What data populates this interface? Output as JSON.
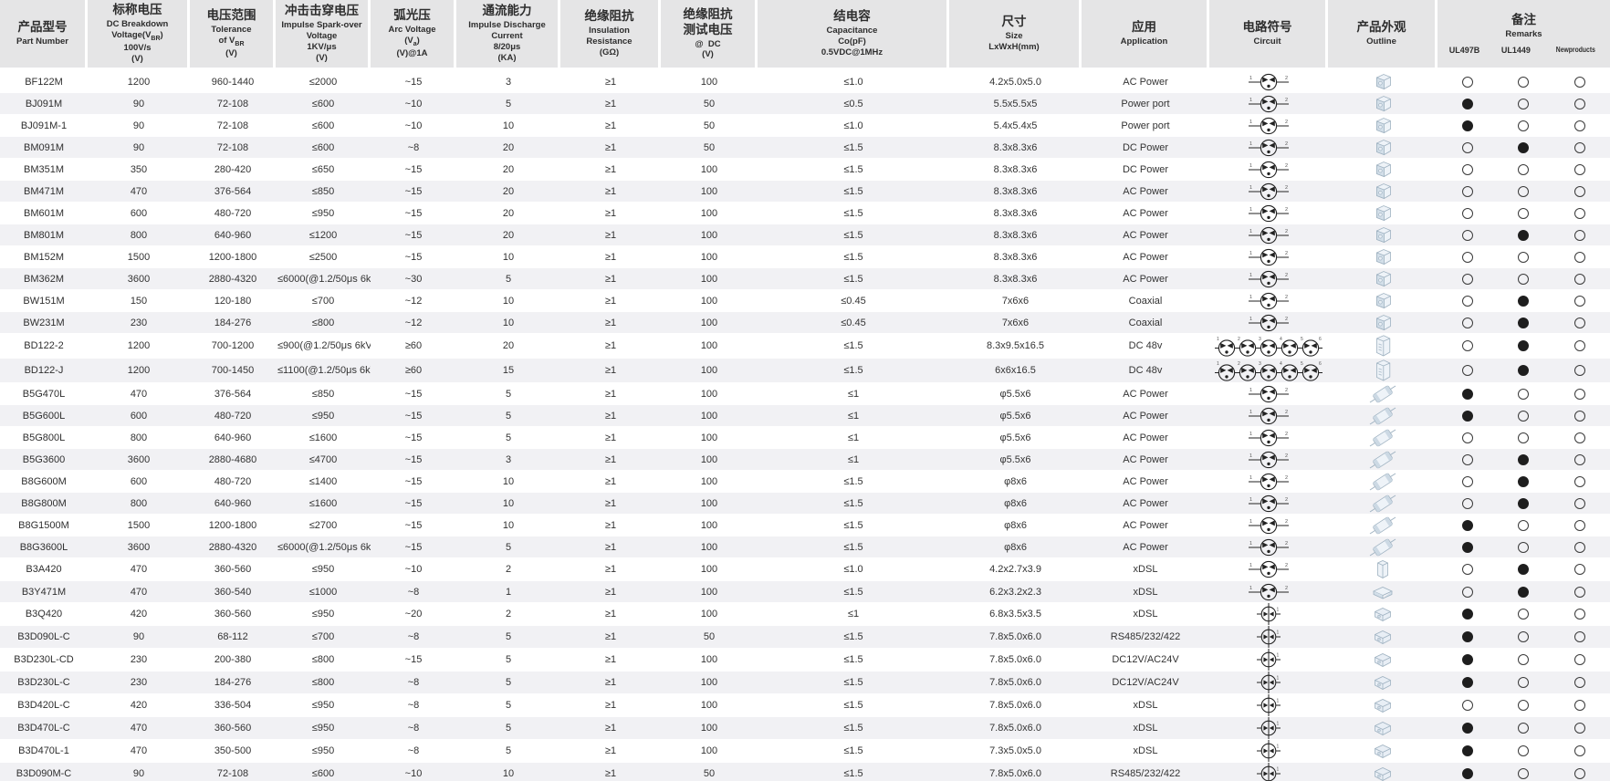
{
  "table": {
    "headers": {
      "part": {
        "cn": "产品型号",
        "en": "Part Number"
      },
      "vbr": {
        "cn": "标称电压",
        "en": "DC Breakdown<br>Voltage(V<sub>BR</sub>)<br>100V/s<br>(V)"
      },
      "tolerance": {
        "cn": "电压范围",
        "en": "Tolerance<br>of V<sub>BR</sub><br>(V)"
      },
      "impulse": {
        "cn": "冲击击穿电压",
        "en": "Impulse Spark-over<br>Voltage<br>1KV/μs<br>(V)"
      },
      "arc": {
        "cn": "弧光压",
        "en": "Arc Voltage<br>(V<sub>a</sub>)<br>(V)@1A"
      },
      "discharge": {
        "cn": "通流能力",
        "en": "Impulse Discharge<br>Current<br>8/20μs<br>(KA)"
      },
      "insulation": {
        "cn": "绝缘阻抗",
        "en": "Insulation<br>Resistance<br>(GΩ)"
      },
      "testv": {
        "cn": "绝缘阻抗<br>测试电压",
        "en": "@&nbsp;&nbsp;DC<br>(V)"
      },
      "capacitance": {
        "cn": "结电容",
        "en": "Capacitance<br>Co(pF)<br>0.5VDC@1MHz"
      },
      "size": {
        "cn": "尺寸",
        "en": "Size<br>LxWxH(mm)"
      },
      "application": {
        "cn": "应用",
        "en": "Application"
      },
      "circuit": {
        "cn": "电路符号",
        "en": "Circuit"
      },
      "outline": {
        "cn": "产品外观",
        "en": "Outline"
      },
      "remarks": {
        "cn": "备注",
        "en": "Remarks",
        "subs": [
          "UL497B",
          "UL1449",
          "Newproducts"
        ]
      }
    },
    "icon_legend": {
      "gdt3": "three-electrode-gdt-circuit-symbol",
      "gdt5": "five-element-gdt-array-circuit-symbol",
      "gdt2": "two-electrode-gdt-circuit-symbol",
      "cube": "smd-cube-outline",
      "module": "module-outline",
      "axial": "axial-leaded-outline",
      "boxv": "vertical-box-outline",
      "boxf": "flat-box-outline",
      "chip": "smd-chip-outline"
    },
    "columns": [
      "part",
      "vbr",
      "tol",
      "imp",
      "arc",
      "ka",
      "ir",
      "tv",
      "cap",
      "size",
      "app"
    ],
    "rows": [
      {
        "part": "BF122M",
        "vbr": "1200",
        "tol": "960-1440",
        "imp": "≤2000",
        "arc": "~15",
        "ka": "3",
        "ir": "≥1",
        "tv": "100",
        "cap": "≤1.0",
        "size": "4.2x5.0x5.0",
        "app": "AC Power",
        "circuit": "gdt3",
        "outline": "cube",
        "ul497b": 0,
        "ul1449": 0,
        "newp": 0
      },
      {
        "part": "BJ091M",
        "vbr": "90",
        "tol": "72-108",
        "imp": "≤600",
        "arc": "~10",
        "ka": "5",
        "ir": "≥1",
        "tv": "50",
        "cap": "≤0.5",
        "size": "5.5x5.5x5",
        "app": "Power port",
        "circuit": "gdt3",
        "outline": "cube",
        "ul497b": 1,
        "ul1449": 0,
        "newp": 0
      },
      {
        "part": "BJ091M-1",
        "vbr": "90",
        "tol": "72-108",
        "imp": "≤600",
        "arc": "~10",
        "ka": "10",
        "ir": "≥1",
        "tv": "50",
        "cap": "≤1.0",
        "size": "5.4x5.4x5",
        "app": "Power port",
        "circuit": "gdt3",
        "outline": "cube",
        "ul497b": 1,
        "ul1449": 0,
        "newp": 0
      },
      {
        "part": "BM091M",
        "vbr": "90",
        "tol": "72-108",
        "imp": "≤600",
        "arc": "~8",
        "ka": "20",
        "ir": "≥1",
        "tv": "50",
        "cap": "≤1.5",
        "size": "8.3x8.3x6",
        "app": "DC Power",
        "circuit": "gdt3",
        "outline": "cube",
        "ul497b": 0,
        "ul1449": 1,
        "newp": 0
      },
      {
        "part": "BM351M",
        "vbr": "350",
        "tol": "280-420",
        "imp": "≤650",
        "arc": "~15",
        "ka": "20",
        "ir": "≥1",
        "tv": "100",
        "cap": "≤1.5",
        "size": "8.3x8.3x6",
        "app": "DC Power",
        "circuit": "gdt3",
        "outline": "cube",
        "ul497b": 0,
        "ul1449": 0,
        "newp": 0
      },
      {
        "part": "BM471M",
        "vbr": "470",
        "tol": "376-564",
        "imp": "≤850",
        "arc": "~15",
        "ka": "20",
        "ir": "≥1",
        "tv": "100",
        "cap": "≤1.5",
        "size": "8.3x8.3x6",
        "app": "AC Power",
        "circuit": "gdt3",
        "outline": "cube",
        "ul497b": 0,
        "ul1449": 0,
        "newp": 0
      },
      {
        "part": "BM601M",
        "vbr": "600",
        "tol": "480-720",
        "imp": "≤950",
        "arc": "~15",
        "ka": "20",
        "ir": "≥1",
        "tv": "100",
        "cap": "≤1.5",
        "size": "8.3x8.3x6",
        "app": "AC Power",
        "circuit": "gdt3",
        "outline": "cube",
        "ul497b": 0,
        "ul1449": 0,
        "newp": 0
      },
      {
        "part": "BM801M",
        "vbr": "800",
        "tol": "640-960",
        "imp": "≤1200",
        "arc": "~15",
        "ka": "20",
        "ir": "≥1",
        "tv": "100",
        "cap": "≤1.5",
        "size": "8.3x8.3x6",
        "app": "AC Power",
        "circuit": "gdt3",
        "outline": "cube",
        "ul497b": 0,
        "ul1449": 1,
        "newp": 0
      },
      {
        "part": "BM152M",
        "vbr": "1500",
        "tol": "1200-1800",
        "imp": "≤2500",
        "arc": "~15",
        "ka": "10",
        "ir": "≥1",
        "tv": "100",
        "cap": "≤1.5",
        "size": "8.3x8.3x6",
        "app": "AC Power",
        "circuit": "gdt3",
        "outline": "cube",
        "ul497b": 0,
        "ul1449": 0,
        "newp": 0
      },
      {
        "part": "BM362M",
        "vbr": "3600",
        "tol": "2880-4320",
        "imp": "≤6000(@1.2/50μs 6kV)",
        "arc": "~30",
        "ka": "5",
        "ir": "≥1",
        "tv": "100",
        "cap": "≤1.5",
        "size": "8.3x8.3x6",
        "app": "AC Power",
        "circuit": "gdt3",
        "outline": "cube",
        "ul497b": 0,
        "ul1449": 0,
        "newp": 0
      },
      {
        "part": "BW151M",
        "vbr": "150",
        "tol": "120-180",
        "imp": "≤700",
        "arc": "~12",
        "ka": "10",
        "ir": "≥1",
        "tv": "100",
        "cap": "≤0.45",
        "size": "7x6x6",
        "app": "Coaxial",
        "circuit": "gdt3",
        "outline": "cube",
        "ul497b": 0,
        "ul1449": 1,
        "newp": 0
      },
      {
        "part": "BW231M",
        "vbr": "230",
        "tol": "184-276",
        "imp": "≤800",
        "arc": "~12",
        "ka": "10",
        "ir": "≥1",
        "tv": "100",
        "cap": "≤0.45",
        "size": "7x6x6",
        "app": "Coaxial",
        "circuit": "gdt3",
        "outline": "cube",
        "ul497b": 0,
        "ul1449": 1,
        "newp": 0
      },
      {
        "part": "BD122-2",
        "vbr": "1200",
        "tol": "700-1200",
        "imp": "≤900(@1.2/50μs 6kV)",
        "arc": "≥60",
        "ka": "20",
        "ir": "≥1",
        "tv": "100",
        "cap": "≤1.5",
        "size": "8.3x9.5x16.5",
        "app": "DC 48v",
        "circuit": "gdt5",
        "outline": "module",
        "ul497b": 0,
        "ul1449": 1,
        "newp": 0
      },
      {
        "part": "BD122-J",
        "vbr": "1200",
        "tol": "700-1450",
        "imp": "≤1100(@1.2/50μs 6kV)",
        "arc": "≥60",
        "ka": "15",
        "ir": "≥1",
        "tv": "100",
        "cap": "≤1.5",
        "size": "6x6x16.5",
        "app": "DC 48v",
        "circuit": "gdt5",
        "outline": "module",
        "ul497b": 0,
        "ul1449": 1,
        "newp": 0
      },
      {
        "part": "B5G470L",
        "vbr": "470",
        "tol": "376-564",
        "imp": "≤850",
        "arc": "~15",
        "ka": "5",
        "ir": "≥1",
        "tv": "100",
        "cap": "≤1",
        "size": "φ5.5x6",
        "app": "AC Power",
        "circuit": "gdt3",
        "outline": "axial",
        "ul497b": 1,
        "ul1449": 0,
        "newp": 0
      },
      {
        "part": "B5G600L",
        "vbr": "600",
        "tol": "480-720",
        "imp": "≤950",
        "arc": "~15",
        "ka": "5",
        "ir": "≥1",
        "tv": "100",
        "cap": "≤1",
        "size": "φ5.5x6",
        "app": "AC Power",
        "circuit": "gdt3",
        "outline": "axial",
        "ul497b": 1,
        "ul1449": 0,
        "newp": 0
      },
      {
        "part": "B5G800L",
        "vbr": "800",
        "tol": "640-960",
        "imp": "≤1600",
        "arc": "~15",
        "ka": "5",
        "ir": "≥1",
        "tv": "100",
        "cap": "≤1",
        "size": "φ5.5x6",
        "app": "AC Power",
        "circuit": "gdt3",
        "outline": "axial",
        "ul497b": 0,
        "ul1449": 0,
        "newp": 0
      },
      {
        "part": "B5G3600",
        "vbr": "3600",
        "tol": "2880-4680",
        "imp": "≤4700",
        "arc": "~15",
        "ka": "3",
        "ir": "≥1",
        "tv": "100",
        "cap": "≤1",
        "size": "φ5.5x6",
        "app": "AC Power",
        "circuit": "gdt3",
        "outline": "axial",
        "ul497b": 0,
        "ul1449": 1,
        "newp": 0
      },
      {
        "part": "B8G600M",
        "vbr": "600",
        "tol": "480-720",
        "imp": "≤1400",
        "arc": "~15",
        "ka": "10",
        "ir": "≥1",
        "tv": "100",
        "cap": "≤1.5",
        "size": "φ8x6",
        "app": "AC Power",
        "circuit": "gdt3",
        "outline": "axial",
        "ul497b": 0,
        "ul1449": 1,
        "newp": 0
      },
      {
        "part": "B8G800M",
        "vbr": "800",
        "tol": "640-960",
        "imp": "≤1600",
        "arc": "~15",
        "ka": "10",
        "ir": "≥1",
        "tv": "100",
        "cap": "≤1.5",
        "size": "φ8x6",
        "app": "AC Power",
        "circuit": "gdt3",
        "outline": "axial",
        "ul497b": 0,
        "ul1449": 1,
        "newp": 0
      },
      {
        "part": "B8G1500M",
        "vbr": "1500",
        "tol": "1200-1800",
        "imp": "≤2700",
        "arc": "~15",
        "ka": "10",
        "ir": "≥1",
        "tv": "100",
        "cap": "≤1.5",
        "size": "φ8x6",
        "app": "AC Power",
        "circuit": "gdt3",
        "outline": "axial",
        "ul497b": 1,
        "ul1449": 0,
        "newp": 0
      },
      {
        "part": "B8G3600L",
        "vbr": "3600",
        "tol": "2880-4320",
        "imp": "≤6000(@1.2/50μs 6kV)",
        "arc": "~15",
        "ka": "5",
        "ir": "≥1",
        "tv": "100",
        "cap": "≤1.5",
        "size": "φ8x6",
        "app": "AC Power",
        "circuit": "gdt3",
        "outline": "axial",
        "ul497b": 1,
        "ul1449": 0,
        "newp": 0
      },
      {
        "part": "B3A420",
        "vbr": "470",
        "tol": "360-560",
        "imp": "≤950",
        "arc": "~10",
        "ka": "2",
        "ir": "≥1",
        "tv": "100",
        "cap": "≤1.0",
        "size": "4.2x2.7x3.9",
        "app": "xDSL",
        "circuit": "gdt3",
        "outline": "boxv",
        "ul497b": 0,
        "ul1449": 1,
        "newp": 0
      },
      {
        "part": "B3Y471M",
        "vbr": "470",
        "tol": "360-540",
        "imp": "≤1000",
        "arc": "~8",
        "ka": "1",
        "ir": "≥1",
        "tv": "100",
        "cap": "≤1.5",
        "size": "6.2x3.2x2.3",
        "app": "xDSL",
        "circuit": "gdt3",
        "outline": "boxf",
        "ul497b": 0,
        "ul1449": 1,
        "newp": 0
      },
      {
        "part": "B3Q420",
        "vbr": "420",
        "tol": "360-560",
        "imp": "≤950",
        "arc": "~20",
        "ka": "2",
        "ir": "≥1",
        "tv": "100",
        "cap": "≤1",
        "size": "6.8x3.5x3.5",
        "app": "xDSL",
        "circuit": "gdt2",
        "outline": "chip",
        "ul497b": 1,
        "ul1449": 0,
        "newp": 0
      },
      {
        "part": "B3D090L-C",
        "vbr": "90",
        "tol": "68-112",
        "imp": "≤700",
        "arc": "~8",
        "ka": "5",
        "ir": "≥1",
        "tv": "50",
        "cap": "≤1.5",
        "size": "7.8x5.0x6.0",
        "app": "RS485/232/422",
        "circuit": "gdt2",
        "outline": "chip",
        "ul497b": 1,
        "ul1449": 0,
        "newp": 0
      },
      {
        "part": "B3D230L-CD",
        "vbr": "230",
        "tol": "200-380",
        "imp": "≤800",
        "arc": "~15",
        "ka": "5",
        "ir": "≥1",
        "tv": "100",
        "cap": "≤1.5",
        "size": "7.8x5.0x6.0",
        "app": "DC12V/AC24V",
        "circuit": "gdt2",
        "outline": "chip",
        "ul497b": 1,
        "ul1449": 0,
        "newp": 0
      },
      {
        "part": "B3D230L-C",
        "vbr": "230",
        "tol": "184-276",
        "imp": "≤800",
        "arc": "~8",
        "ka": "5",
        "ir": "≥1",
        "tv": "100",
        "cap": "≤1.5",
        "size": "7.8x5.0x6.0",
        "app": "DC12V/AC24V",
        "circuit": "gdt2",
        "outline": "chip",
        "ul497b": 1,
        "ul1449": 0,
        "newp": 0
      },
      {
        "part": "B3D420L-C",
        "vbr": "420",
        "tol": "336-504",
        "imp": "≤950",
        "arc": "~8",
        "ka": "5",
        "ir": "≥1",
        "tv": "100",
        "cap": "≤1.5",
        "size": "7.8x5.0x6.0",
        "app": "xDSL",
        "circuit": "gdt2",
        "outline": "chip",
        "ul497b": 0,
        "ul1449": 0,
        "newp": 0
      },
      {
        "part": "B3D470L-C",
        "vbr": "470",
        "tol": "360-560",
        "imp": "≤950",
        "arc": "~8",
        "ka": "5",
        "ir": "≥1",
        "tv": "100",
        "cap": "≤1.5",
        "size": "7.8x5.0x6.0",
        "app": "xDSL",
        "circuit": "gdt2",
        "outline": "chip",
        "ul497b": 1,
        "ul1449": 0,
        "newp": 0
      },
      {
        "part": "B3D470L-1",
        "vbr": "470",
        "tol": "350-500",
        "imp": "≤950",
        "arc": "~8",
        "ka": "5",
        "ir": "≥1",
        "tv": "100",
        "cap": "≤1.5",
        "size": "7.3x5.0x5.0",
        "app": "xDSL",
        "circuit": "gdt2",
        "outline": "chip",
        "ul497b": 1,
        "ul1449": 0,
        "newp": 0
      },
      {
        "part": "B3D090M-C",
        "vbr": "90",
        "tol": "72-108",
        "imp": "≤600",
        "arc": "~10",
        "ka": "10",
        "ir": "≥1",
        "tv": "50",
        "cap": "≤1.5",
        "size": "7.8x5.0x6.0",
        "app": "RS485/232/422",
        "circuit": "gdt2",
        "outline": "chip",
        "ul497b": 1,
        "ul1449": 0,
        "newp": 0
      }
    ]
  }
}
